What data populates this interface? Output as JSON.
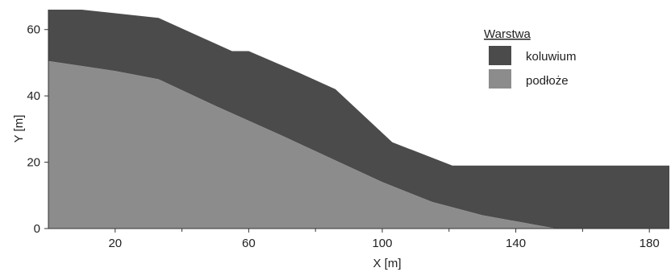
{
  "chart_data": {
    "type": "area",
    "xlabel": "X [m]",
    "ylabel": "Y [m]",
    "xlim": [
      0,
      186
    ],
    "ylim": [
      0,
      66
    ],
    "x_ticks": [
      20,
      60,
      100,
      140,
      180
    ],
    "y_ticks": [
      0,
      20,
      40,
      60
    ],
    "grid": false,
    "legend": {
      "title": "Warstwa",
      "placement": "top-right"
    },
    "series": [
      {
        "name": "koluwium",
        "color": "#4b4b4b",
        "points": [
          [
            0,
            66
          ],
          [
            10,
            66
          ],
          [
            33,
            63.5
          ],
          [
            55,
            53.5
          ],
          [
            60,
            53.5
          ],
          [
            75,
            47
          ],
          [
            86,
            42
          ],
          [
            103,
            26
          ],
          [
            121,
            19
          ],
          [
            186,
            19
          ],
          [
            186,
            0
          ],
          [
            152,
            0
          ],
          [
            130,
            4
          ],
          [
            115,
            8
          ],
          [
            100,
            14
          ],
          [
            85,
            21
          ],
          [
            70,
            28
          ],
          [
            50,
            37
          ],
          [
            33,
            45
          ],
          [
            20,
            47.5
          ],
          [
            0,
            50.5
          ]
        ]
      },
      {
        "name": "podłoże",
        "color": "#8c8c8c",
        "points": [
          [
            0,
            50.5
          ],
          [
            20,
            47.5
          ],
          [
            33,
            45
          ],
          [
            50,
            37
          ],
          [
            70,
            28
          ],
          [
            85,
            21
          ],
          [
            100,
            14
          ],
          [
            115,
            8
          ],
          [
            130,
            4
          ],
          [
            152,
            0
          ],
          [
            0,
            0
          ]
        ]
      }
    ]
  }
}
